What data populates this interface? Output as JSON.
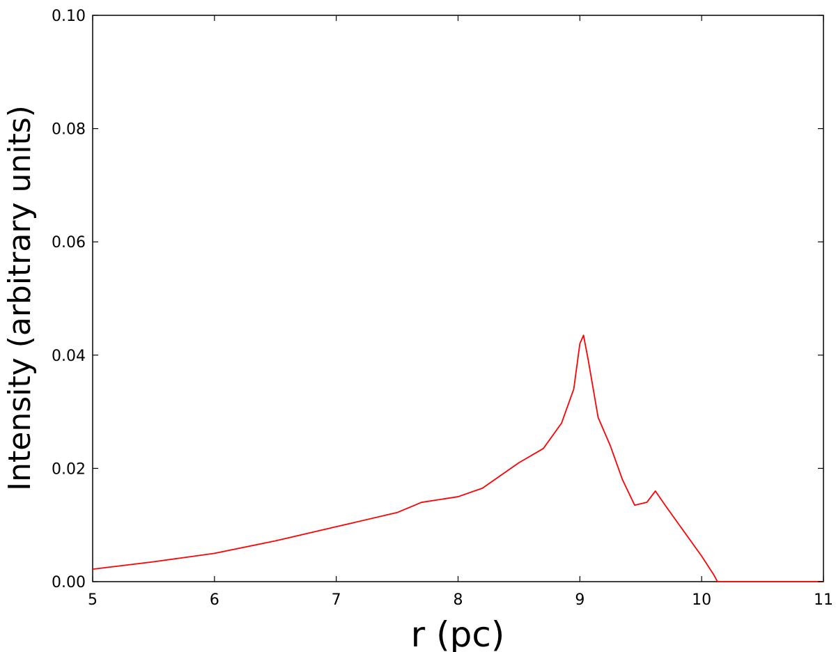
{
  "chart_data": {
    "type": "line",
    "title": "",
    "xlabel": "r (pc)",
    "ylabel": "Intensity (arbitrary units)",
    "xlim": [
      5,
      11
    ],
    "ylim": [
      0.0,
      0.1
    ],
    "x_ticks": [
      "5",
      "6",
      "7",
      "8",
      "9",
      "10",
      "11"
    ],
    "y_ticks": [
      "0.00",
      "0.02",
      "0.04",
      "0.06",
      "0.08",
      "0.10"
    ],
    "x_tick_values": [
      5,
      6,
      7,
      8,
      9,
      10,
      11
    ],
    "y_tick_values": [
      0.0,
      0.02,
      0.04,
      0.06,
      0.08,
      0.1
    ],
    "grid": false,
    "series": [
      {
        "color": "#ff0000",
        "x": [
          5.0,
          5.5,
          6.0,
          6.5,
          7.0,
          7.5,
          7.7,
          8.0,
          8.2,
          8.5,
          8.7,
          8.85,
          8.95,
          9.0,
          9.03,
          9.07,
          9.15,
          9.25,
          9.35,
          9.45,
          9.55,
          9.62,
          9.7,
          9.8,
          9.9,
          10.0,
          10.1,
          10.13,
          10.5,
          11.0
        ],
        "y": [
          0.0022,
          0.0035,
          0.005,
          0.0072,
          0.0097,
          0.0122,
          0.014,
          0.015,
          0.0165,
          0.021,
          0.0235,
          0.028,
          0.034,
          0.042,
          0.0435,
          0.039,
          0.029,
          0.024,
          0.018,
          0.0135,
          0.014,
          0.016,
          0.0135,
          0.0105,
          0.0075,
          0.0045,
          0.0012,
          0.0,
          0.0,
          0.0
        ]
      }
    ]
  }
}
